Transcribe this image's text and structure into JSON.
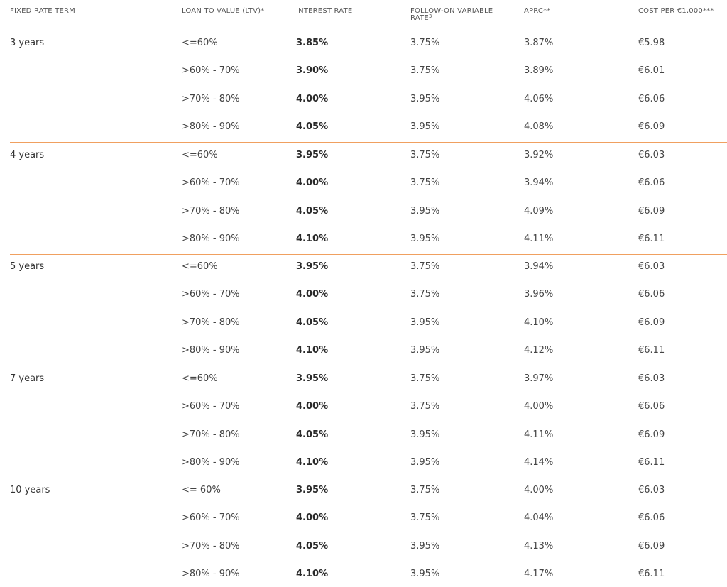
{
  "table": {
    "headers": {
      "term": "FIXED RATE TERM",
      "ltv": "LOAN TO VALUE (LTV)*",
      "rate": "INTEREST RATE",
      "follow_line1": "FOLLOW-ON VARIABLE",
      "follow_line2": "RATE",
      "follow_sup": "3",
      "aprc": "APRC**",
      "cost": "COST PER €1,000***"
    },
    "groups": [
      {
        "term": "3 years",
        "rows": [
          {
            "ltv": "<=60%",
            "rate": "3.85%",
            "follow": "3.75%",
            "aprc": "3.87%",
            "cost": "€5.98"
          },
          {
            "ltv": ">60% - 70%",
            "rate": "3.90%",
            "follow": "3.75%",
            "aprc": "3.89%",
            "cost": "€6.01"
          },
          {
            "ltv": ">70% - 80%",
            "rate": "4.00%",
            "follow": "3.95%",
            "aprc": "4.06%",
            "cost": "€6.06"
          },
          {
            "ltv": ">80% - 90%",
            "rate": "4.05%",
            "follow": "3.95%",
            "aprc": "4.08%",
            "cost": "€6.09"
          }
        ]
      },
      {
        "term": "4 years",
        "rows": [
          {
            "ltv": "<=60%",
            "rate": "3.95%",
            "follow": "3.75%",
            "aprc": "3.92%",
            "cost": "€6.03"
          },
          {
            "ltv": ">60% - 70%",
            "rate": "4.00%",
            "follow": "3.75%",
            "aprc": "3.94%",
            "cost": "€6.06"
          },
          {
            "ltv": ">70% - 80%",
            "rate": "4.05%",
            "follow": "3.95%",
            "aprc": "4.09%",
            "cost": "€6.09"
          },
          {
            "ltv": ">80% - 90%",
            "rate": "4.10%",
            "follow": "3.95%",
            "aprc": "4.11%",
            "cost": "€6.11"
          }
        ]
      },
      {
        "term": "5 years",
        "rows": [
          {
            "ltv": "<=60%",
            "rate": "3.95%",
            "follow": "3.75%",
            "aprc": "3.94%",
            "cost": "€6.03"
          },
          {
            "ltv": ">60% - 70%",
            "rate": "4.00%",
            "follow": "3.75%",
            "aprc": "3.96%",
            "cost": "€6.06"
          },
          {
            "ltv": ">70% - 80%",
            "rate": "4.05%",
            "follow": "3.95%",
            "aprc": "4.10%",
            "cost": "€6.09"
          },
          {
            "ltv": ">80% - 90%",
            "rate": "4.10%",
            "follow": "3.95%",
            "aprc": "4.12%",
            "cost": "€6.11"
          }
        ]
      },
      {
        "term": "7 years",
        "rows": [
          {
            "ltv": "<=60%",
            "rate": "3.95%",
            "follow": "3.75%",
            "aprc": "3.97%",
            "cost": "€6.03"
          },
          {
            "ltv": ">60% - 70%",
            "rate": "4.00%",
            "follow": "3.75%",
            "aprc": "4.00%",
            "cost": "€6.06"
          },
          {
            "ltv": ">70% - 80%",
            "rate": "4.05%",
            "follow": "3.95%",
            "aprc": "4.11%",
            "cost": "€6.09"
          },
          {
            "ltv": ">80% - 90%",
            "rate": "4.10%",
            "follow": "3.95%",
            "aprc": "4.14%",
            "cost": "€6.11"
          }
        ]
      },
      {
        "term": "10 years",
        "rows": [
          {
            "ltv": "<= 60%",
            "rate": "3.95%",
            "follow": "3.75%",
            "aprc": "4.00%",
            "cost": "€6.03"
          },
          {
            "ltv": ">60% - 70%",
            "rate": "4.00%",
            "follow": "3.75%",
            "aprc": "4.04%",
            "cost": "€6.06"
          },
          {
            "ltv": ">70% - 80%",
            "rate": "4.05%",
            "follow": "3.95%",
            "aprc": "4.13%",
            "cost": "€6.09"
          },
          {
            "ltv": ">80% - 90%",
            "rate": "4.10%",
            "follow": "3.95%",
            "aprc": "4.17%",
            "cost": "€6.11"
          }
        ]
      }
    ]
  }
}
